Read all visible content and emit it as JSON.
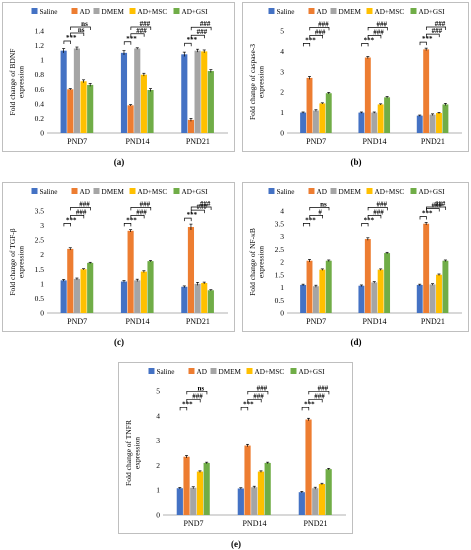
{
  "figure": {
    "captions": [
      "(a)",
      "(b)",
      "(c)",
      "(d)",
      "(e)"
    ]
  },
  "colors": {
    "Saline": "#4472C4",
    "AD": "#ED7D31",
    "DMEM": "#A5A5A5",
    "AD+MSC": "#FFC000",
    "AD+GSI": "#70AD47"
  },
  "chart_data": [
    {
      "type": "bar",
      "ylabel": "Fold change of BDNF expression",
      "ylim": [
        0,
        1.4
      ],
      "yticks": [
        "0",
        "0.2",
        "0.4",
        "0.6",
        "0.8",
        "1",
        "1.2",
        "1.4"
      ],
      "grid": false,
      "legend": "top",
      "categories": [
        "PND7",
        "PND14",
        "PND21"
      ],
      "series": [
        {
          "name": "Saline",
          "values": [
            1.13,
            1.1,
            1.08
          ],
          "errors": [
            0.03,
            0.03,
            0.03
          ]
        },
        {
          "name": "AD",
          "values": [
            0.6,
            0.38,
            0.18
          ],
          "errors": [
            0.01,
            0.01,
            0.02
          ]
        },
        {
          "name": "DMEM",
          "values": [
            1.16,
            1.16,
            1.13
          ],
          "errors": [
            0.02,
            0.01,
            0.02
          ]
        },
        {
          "name": "AD+MSC",
          "values": [
            0.71,
            0.8,
            1.12
          ],
          "errors": [
            0.02,
            0.02,
            0.02
          ]
        },
        {
          "name": "AD+GSI",
          "values": [
            0.66,
            0.59,
            0.85
          ],
          "errors": [
            0.02,
            0.02,
            0.02
          ]
        }
      ],
      "annotations": [
        {
          "group": 0,
          "from": 0,
          "to": 1,
          "label": "***",
          "level": 0
        },
        {
          "group": 0,
          "from": 1,
          "to": 3,
          "label": "ns",
          "level": 1
        },
        {
          "group": 0,
          "from": 1,
          "to": 4,
          "label": "ns",
          "level": 2
        },
        {
          "group": 1,
          "from": 0,
          "to": 1,
          "label": "***",
          "level": 0
        },
        {
          "group": 1,
          "from": 1,
          "to": 3,
          "label": "###",
          "level": 1
        },
        {
          "group": 1,
          "from": 1,
          "to": 4,
          "label": "###",
          "level": 2
        },
        {
          "group": 2,
          "from": 0,
          "to": 1,
          "label": "***",
          "level": 0
        },
        {
          "group": 2,
          "from": 1,
          "to": 3,
          "label": "###",
          "level": 1
        },
        {
          "group": 2,
          "from": 1,
          "to": 4,
          "label": "###",
          "level": 2
        }
      ]
    },
    {
      "type": "bar",
      "ylabel": "Fold change of caspase-3 expression",
      "ylim": [
        0,
        5
      ],
      "yticks": [
        "0",
        "1",
        "2",
        "3",
        "4",
        "5"
      ],
      "grid": false,
      "legend": "top",
      "categories": [
        "PND7",
        "PND14",
        "PND21"
      ],
      "series": [
        {
          "name": "Saline",
          "values": [
            1.0,
            1.0,
            0.85
          ],
          "errors": [
            0.03,
            0.03,
            0.03
          ]
        },
        {
          "name": "AD",
          "values": [
            2.7,
            3.7,
            4.1
          ],
          "errors": [
            0.07,
            0.05,
            0.06
          ]
        },
        {
          "name": "DMEM",
          "values": [
            1.1,
            1.0,
            0.9
          ],
          "errors": [
            0.04,
            0.03,
            0.04
          ]
        },
        {
          "name": "AD+MSC",
          "values": [
            1.45,
            1.4,
            0.98
          ],
          "errors": [
            0.03,
            0.03,
            0.03
          ]
        },
        {
          "name": "AD+GSI",
          "values": [
            1.95,
            1.75,
            1.4
          ],
          "errors": [
            0.04,
            0.04,
            0.05
          ]
        }
      ],
      "annotations": [
        {
          "group": 0,
          "from": 0,
          "to": 1,
          "label": "***",
          "level": 0
        },
        {
          "group": 0,
          "from": 1,
          "to": 3,
          "label": "###",
          "level": 1
        },
        {
          "group": 0,
          "from": 1,
          "to": 4,
          "label": "###",
          "level": 2
        },
        {
          "group": 1,
          "from": 0,
          "to": 1,
          "label": "***",
          "level": 0
        },
        {
          "group": 1,
          "from": 1,
          "to": 3,
          "label": "###",
          "level": 1
        },
        {
          "group": 1,
          "from": 1,
          "to": 4,
          "label": "###",
          "level": 2
        },
        {
          "group": 2,
          "from": 0,
          "to": 1,
          "label": "***",
          "level": 0
        },
        {
          "group": 2,
          "from": 1,
          "to": 3,
          "label": "###",
          "level": 1
        },
        {
          "group": 2,
          "from": 1,
          "to": 4,
          "label": "###",
          "level": 2
        }
      ]
    },
    {
      "type": "bar",
      "ylabel": "Fold change of TGF-β expression",
      "ylim": [
        0,
        3.5
      ],
      "yticks": [
        "0",
        "0.5",
        "1",
        "1.5",
        "2",
        "2.5",
        "3",
        "3.5"
      ],
      "grid": false,
      "legend": "top",
      "categories": [
        "PND7",
        "PND14",
        "PND21"
      ],
      "series": [
        {
          "name": "Saline",
          "values": [
            1.12,
            1.08,
            0.9
          ],
          "errors": [
            0.03,
            0.03,
            0.03
          ]
        },
        {
          "name": "AD",
          "values": [
            2.2,
            2.82,
            2.95
          ],
          "errors": [
            0.04,
            0.04,
            0.1
          ]
        },
        {
          "name": "DMEM",
          "values": [
            1.17,
            1.12,
            1.0
          ],
          "errors": [
            0.03,
            0.04,
            0.05
          ]
        },
        {
          "name": "AD+MSC",
          "values": [
            1.5,
            1.42,
            1.03
          ],
          "errors": [
            0.02,
            0.03,
            0.03
          ]
        },
        {
          "name": "AD+GSI",
          "values": [
            1.72,
            1.78,
            0.78
          ],
          "errors": [
            0.02,
            0.02,
            0.02
          ]
        }
      ],
      "annotations": [
        {
          "group": 0,
          "from": 0,
          "to": 1,
          "label": "***",
          "level": 0
        },
        {
          "group": 0,
          "from": 1,
          "to": 3,
          "label": "###",
          "level": 1
        },
        {
          "group": 0,
          "from": 1,
          "to": 4,
          "label": "###",
          "level": 2
        },
        {
          "group": 1,
          "from": 0,
          "to": 1,
          "label": "***",
          "level": 0
        },
        {
          "group": 1,
          "from": 1,
          "to": 3,
          "label": "###",
          "level": 1
        },
        {
          "group": 1,
          "from": 1,
          "to": 4,
          "label": "###",
          "level": 2
        },
        {
          "group": 2,
          "from": 0,
          "to": 1,
          "label": "***",
          "level": 0
        },
        {
          "group": 2,
          "from": 1,
          "to": 3,
          "label": "###",
          "level": 1
        },
        {
          "group": 2,
          "from": 1,
          "to": 4,
          "label": "###",
          "level": 2
        }
      ]
    },
    {
      "type": "bar",
      "ylabel": "Fold change of NF-κB expression",
      "ylim": [
        0,
        4
      ],
      "yticks": [
        "0",
        "0.5",
        "1",
        "1.5",
        "2",
        "2.5",
        "3",
        "3.5",
        "4"
      ],
      "grid": false,
      "legend": "top",
      "categories": [
        "PND7",
        "PND14",
        "PND21"
      ],
      "series": [
        {
          "name": "Saline",
          "values": [
            1.1,
            1.07,
            1.1
          ],
          "errors": [
            0.03,
            0.03,
            0.03
          ]
        },
        {
          "name": "AD",
          "values": [
            2.05,
            2.9,
            3.5
          ],
          "errors": [
            0.05,
            0.05,
            0.05
          ]
        },
        {
          "name": "DMEM",
          "values": [
            1.05,
            1.2,
            1.12
          ],
          "errors": [
            0.04,
            0.03,
            0.03
          ]
        },
        {
          "name": "AD+MSC",
          "values": [
            1.7,
            1.7,
            1.5
          ],
          "errors": [
            0.03,
            0.03,
            0.03
          ]
        },
        {
          "name": "AD+GSI",
          "values": [
            2.05,
            2.35,
            2.05
          ],
          "errors": [
            0.03,
            0.03,
            0.03
          ]
        }
      ],
      "annotations": [
        {
          "group": 0,
          "from": 0,
          "to": 1,
          "label": "***",
          "level": 0
        },
        {
          "group": 0,
          "from": 1,
          "to": 3,
          "label": "#",
          "level": 1
        },
        {
          "group": 0,
          "from": 1,
          "to": 4,
          "label": "ns",
          "level": 2
        },
        {
          "group": 1,
          "from": 0,
          "to": 1,
          "label": "***",
          "level": 0
        },
        {
          "group": 1,
          "from": 1,
          "to": 3,
          "label": "###",
          "level": 1
        },
        {
          "group": 1,
          "from": 1,
          "to": 4,
          "label": "###",
          "level": 2
        },
        {
          "group": 2,
          "from": 0,
          "to": 1,
          "label": "***",
          "level": 0
        },
        {
          "group": 2,
          "from": 1,
          "to": 3,
          "label": "###",
          "level": 1
        },
        {
          "group": 2,
          "from": 1,
          "to": 4,
          "label": "###",
          "level": 2
        }
      ]
    },
    {
      "type": "bar",
      "ylabel": "Fold change of TNFR expression",
      "ylim": [
        0,
        5
      ],
      "yticks": [
        "0",
        "1",
        "2",
        "3",
        "4",
        "5"
      ],
      "grid": false,
      "legend": "top",
      "categories": [
        "PND7",
        "PND14",
        "PND21"
      ],
      "series": [
        {
          "name": "Saline",
          "values": [
            1.08,
            1.07,
            0.92
          ],
          "errors": [
            0.03,
            0.03,
            0.03
          ]
        },
        {
          "name": "AD",
          "values": [
            2.35,
            2.8,
            3.85
          ],
          "errors": [
            0.05,
            0.05,
            0.05
          ]
        },
        {
          "name": "DMEM",
          "values": [
            1.1,
            1.12,
            1.08
          ],
          "errors": [
            0.04,
            0.04,
            0.04
          ]
        },
        {
          "name": "AD+MSC",
          "values": [
            1.75,
            1.75,
            1.25
          ],
          "errors": [
            0.03,
            0.03,
            0.03
          ]
        },
        {
          "name": "AD+GSI",
          "values": [
            2.1,
            2.1,
            1.85
          ],
          "errors": [
            0.03,
            0.03,
            0.03
          ]
        }
      ],
      "annotations": [
        {
          "group": 0,
          "from": 0,
          "to": 1,
          "label": "***",
          "level": 0
        },
        {
          "group": 0,
          "from": 1,
          "to": 3,
          "label": "###",
          "level": 1
        },
        {
          "group": 0,
          "from": 1,
          "to": 4,
          "label": "ns",
          "level": 2
        },
        {
          "group": 1,
          "from": 0,
          "to": 1,
          "label": "***",
          "level": 0
        },
        {
          "group": 1,
          "from": 1,
          "to": 3,
          "label": "###",
          "level": 1
        },
        {
          "group": 1,
          "from": 1,
          "to": 4,
          "label": "###",
          "level": 2
        },
        {
          "group": 2,
          "from": 0,
          "to": 1,
          "label": "***",
          "level": 0
        },
        {
          "group": 2,
          "from": 1,
          "to": 3,
          "label": "###",
          "level": 1
        },
        {
          "group": 2,
          "from": 1,
          "to": 4,
          "label": "###",
          "level": 2
        }
      ]
    }
  ]
}
